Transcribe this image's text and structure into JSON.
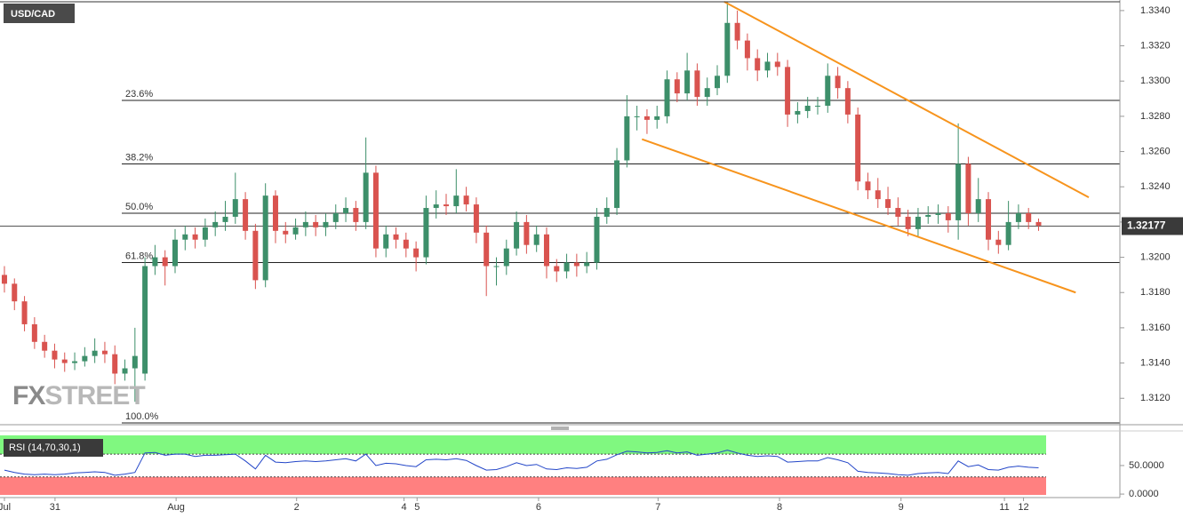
{
  "chart_data": {
    "type": "candlestick",
    "title": "USD/CAD",
    "watermark": [
      "FX",
      "STREET"
    ],
    "up_color": "#3d8f6a",
    "down_color": "#d9534f",
    "xlim": [
      -0.44,
      111.1
    ],
    "xticks": [
      {
        "value": 0,
        "label": "Jul"
      },
      {
        "value": 5.04,
        "label": "31"
      },
      {
        "value": 17.1,
        "label": "Aug"
      },
      {
        "value": 29.1,
        "label": "2"
      },
      {
        "value": 39.8,
        "label": "4"
      },
      {
        "value": 41.1,
        "label": "5"
      },
      {
        "value": 53.2,
        "label": "6"
      },
      {
        "value": 65.1,
        "label": "7"
      },
      {
        "value": 77.2,
        "label": "8"
      },
      {
        "value": 89.3,
        "label": "9"
      },
      {
        "value": 99.6,
        "label": "11"
      },
      {
        "value": 101.5,
        "label": "12"
      }
    ],
    "ylim": [
      1.3105,
      1.3346
    ],
    "yticks": [
      {
        "value": 1.312,
        "label": "1.3120"
      },
      {
        "value": 1.314,
        "label": "1.3140"
      },
      {
        "value": 1.316,
        "label": "1.3160"
      },
      {
        "value": 1.318,
        "label": "1.3180"
      },
      {
        "value": 1.32,
        "label": "1.3200"
      },
      {
        "value": 1.322,
        "label": "1.3220"
      },
      {
        "value": 1.324,
        "label": "1.3240"
      },
      {
        "value": 1.326,
        "label": "1.3260"
      },
      {
        "value": 1.328,
        "label": "1.3280"
      },
      {
        "value": 1.33,
        "label": "1.3300"
      },
      {
        "value": 1.332,
        "label": "1.3320"
      },
      {
        "value": 1.334,
        "label": "1.3340"
      }
    ],
    "current_price": 1.32177,
    "fib_levels": [
      {
        "label": "23.6%",
        "value": 1.3289
      },
      {
        "label": "38.2%",
        "value": 1.3253
      },
      {
        "label": "50.0%",
        "value": 1.3225
      },
      {
        "label": "61.8%",
        "value": 1.3197
      },
      {
        "label": "100.0%",
        "value": 1.3106
      }
    ],
    "trendlines": [
      {
        "color": "#f7941d",
        "x": [
          71.7,
          108
        ],
        "y": [
          1.3345,
          1.3234
        ]
      },
      {
        "color": "#f7941d",
        "x": [
          63.5,
          106.7
        ],
        "y": [
          1.3267,
          1.318
        ]
      }
    ],
    "candles": [
      [
        1.319,
        1.3195,
        1.318,
        1.3185
      ],
      [
        1.3185,
        1.3188,
        1.317,
        1.3175
      ],
      [
        1.3175,
        1.3178,
        1.3158,
        1.3162
      ],
      [
        1.3162,
        1.3166,
        1.3148,
        1.3152
      ],
      [
        1.3152,
        1.3156,
        1.3143,
        1.3147
      ],
      [
        1.3147,
        1.3151,
        1.3137,
        1.3142
      ],
      [
        1.3142,
        1.3146,
        1.3135,
        1.314
      ],
      [
        1.314,
        1.3146,
        1.3136,
        1.3141
      ],
      [
        1.3141,
        1.3149,
        1.3138,
        1.3144
      ],
      [
        1.3144,
        1.3154,
        1.314,
        1.3147
      ],
      [
        1.3147,
        1.3152,
        1.314,
        1.3145
      ],
      [
        1.3145,
        1.315,
        1.3128,
        1.3134
      ],
      [
        1.3134,
        1.3142,
        1.313,
        1.3137
      ],
      [
        1.3137,
        1.316,
        1.3118,
        1.3144
      ],
      [
        1.3134,
        1.32,
        1.313,
        1.3195
      ],
      [
        1.3195,
        1.3207,
        1.319,
        1.32
      ],
      [
        1.32,
        1.3204,
        1.3184,
        1.3195
      ],
      [
        1.3195,
        1.3216,
        1.3191,
        1.321
      ],
      [
        1.321,
        1.3218,
        1.3204,
        1.3213
      ],
      [
        1.3213,
        1.3217,
        1.3205,
        1.321
      ],
      [
        1.321,
        1.3222,
        1.3206,
        1.3217
      ],
      [
        1.3217,
        1.3226,
        1.3212,
        1.322
      ],
      [
        1.322,
        1.3232,
        1.3215,
        1.3223
      ],
      [
        1.3223,
        1.3248,
        1.3219,
        1.3233
      ],
      [
        1.3233,
        1.3237,
        1.321,
        1.3215
      ],
      [
        1.3215,
        1.3219,
        1.3182,
        1.3187
      ],
      [
        1.3187,
        1.3242,
        1.3183,
        1.3235
      ],
      [
        1.3235,
        1.3238,
        1.3208,
        1.3215
      ],
      [
        1.3215,
        1.322,
        1.3208,
        1.3213
      ],
      [
        1.3213,
        1.3222,
        1.321,
        1.3217
      ],
      [
        1.3217,
        1.3226,
        1.3212,
        1.322
      ],
      [
        1.322,
        1.3224,
        1.3212,
        1.3217
      ],
      [
        1.3217,
        1.3225,
        1.3212,
        1.322
      ],
      [
        1.322,
        1.323,
        1.3216,
        1.3225
      ],
      [
        1.3225,
        1.3234,
        1.322,
        1.3228
      ],
      [
        1.3228,
        1.3232,
        1.3215,
        1.322
      ],
      [
        1.322,
        1.3268,
        1.3216,
        1.3248
      ],
      [
        1.3248,
        1.3252,
        1.32,
        1.3205
      ],
      [
        1.3205,
        1.3218,
        1.32,
        1.3213
      ],
      [
        1.3213,
        1.3217,
        1.3205,
        1.321
      ],
      [
        1.321,
        1.3214,
        1.32,
        1.3205
      ],
      [
        1.3205,
        1.3209,
        1.3192,
        1.32
      ],
      [
        1.32,
        1.3235,
        1.3196,
        1.3228
      ],
      [
        1.3228,
        1.3238,
        1.3222,
        1.323
      ],
      [
        1.323,
        1.3236,
        1.3224,
        1.3229
      ],
      [
        1.3229,
        1.325,
        1.3225,
        1.3235
      ],
      [
        1.3235,
        1.324,
        1.3226,
        1.323
      ],
      [
        1.323,
        1.3234,
        1.3208,
        1.3214
      ],
      [
        1.3214,
        1.3218,
        1.3178,
        1.3195
      ],
      [
        1.3195,
        1.32,
        1.3184,
        1.3195
      ],
      [
        1.3195,
        1.321,
        1.319,
        1.3205
      ],
      [
        1.3205,
        1.3226,
        1.3201,
        1.322
      ],
      [
        1.322,
        1.3224,
        1.3202,
        1.3207
      ],
      [
        1.3207,
        1.3218,
        1.3203,
        1.3213
      ],
      [
        1.3213,
        1.3217,
        1.3188,
        1.3195
      ],
      [
        1.3195,
        1.3199,
        1.3186,
        1.3192
      ],
      [
        1.3192,
        1.3202,
        1.3188,
        1.3197
      ],
      [
        1.3197,
        1.3202,
        1.3189,
        1.3195
      ],
      [
        1.3195,
        1.3203,
        1.3191,
        1.3197
      ],
      [
        1.3197,
        1.3228,
        1.3193,
        1.3223
      ],
      [
        1.3223,
        1.3234,
        1.3219,
        1.3228
      ],
      [
        1.3228,
        1.3262,
        1.3224,
        1.3255
      ],
      [
        1.3255,
        1.3292,
        1.3251,
        1.328
      ],
      [
        1.328,
        1.3286,
        1.3272,
        1.328
      ],
      [
        1.328,
        1.3284,
        1.327,
        1.3278
      ],
      [
        1.3278,
        1.3286,
        1.3273,
        1.328
      ],
      [
        1.328,
        1.3306,
        1.3276,
        1.3301
      ],
      [
        1.3301,
        1.3305,
        1.3288,
        1.3293
      ],
      [
        1.3293,
        1.3316,
        1.3289,
        1.3306
      ],
      [
        1.3306,
        1.331,
        1.3286,
        1.3291
      ],
      [
        1.3291,
        1.3302,
        1.3286,
        1.3296
      ],
      [
        1.3296,
        1.3309,
        1.3292,
        1.3303
      ],
      [
        1.3303,
        1.3345,
        1.3299,
        1.3333
      ],
      [
        1.3333,
        1.334,
        1.3318,
        1.3323
      ],
      [
        1.3323,
        1.3327,
        1.3306,
        1.3313
      ],
      [
        1.3313,
        1.3318,
        1.33,
        1.3306
      ],
      [
        1.3306,
        1.3316,
        1.3302,
        1.3311
      ],
      [
        1.3311,
        1.3316,
        1.3303,
        1.3308
      ],
      [
        1.3308,
        1.3312,
        1.3274,
        1.3281
      ],
      [
        1.3281,
        1.3288,
        1.3276,
        1.3283
      ],
      [
        1.3283,
        1.3291,
        1.3279,
        1.3286
      ],
      [
        1.3286,
        1.3291,
        1.3281,
        1.3286
      ],
      [
        1.3286,
        1.331,
        1.3282,
        1.3303
      ],
      [
        1.3303,
        1.3308,
        1.329,
        1.3296
      ],
      [
        1.3296,
        1.33,
        1.3276,
        1.3281
      ],
      [
        1.3281,
        1.3285,
        1.3238,
        1.3243
      ],
      [
        1.3243,
        1.3248,
        1.3233,
        1.3238
      ],
      [
        1.3238,
        1.3245,
        1.3228,
        1.3233
      ],
      [
        1.3233,
        1.324,
        1.3224,
        1.3228
      ],
      [
        1.3228,
        1.3234,
        1.3218,
        1.3223
      ],
      [
        1.3223,
        1.3227,
        1.3212,
        1.3216
      ],
      [
        1.3216,
        1.3228,
        1.3212,
        1.3223
      ],
      [
        1.3223,
        1.3229,
        1.3219,
        1.3224
      ],
      [
        1.3224,
        1.323,
        1.3219,
        1.3225
      ],
      [
        1.3225,
        1.3229,
        1.3214,
        1.3221
      ],
      [
        1.3221,
        1.3276,
        1.321,
        1.3253
      ],
      [
        1.3253,
        1.3257,
        1.3218,
        1.3225
      ],
      [
        1.3225,
        1.3245,
        1.322,
        1.3233
      ],
      [
        1.3233,
        1.3237,
        1.3204,
        1.321
      ],
      [
        1.321,
        1.3215,
        1.3202,
        1.3207
      ],
      [
        1.3207,
        1.3232,
        1.3204,
        1.322
      ],
      [
        1.322,
        1.323,
        1.3216,
        1.3225
      ],
      [
        1.3225,
        1.3228,
        1.3216,
        1.322
      ],
      [
        1.322,
        1.3222,
        1.3215,
        1.3218
      ]
    ],
    "rsi": {
      "label": "RSI (14,70,30,1)",
      "color": "#2346c8",
      "ylim": [
        -3,
        106
      ],
      "yticks": [
        {
          "value": 50,
          "label": "50.0000"
        },
        {
          "value": 0,
          "label": "0.0000"
        }
      ],
      "overbought": 70,
      "oversold": 30,
      "values": [
        42,
        38,
        35,
        34,
        35,
        34,
        35,
        37,
        38,
        39,
        38,
        33,
        35,
        38,
        72,
        73,
        68,
        70,
        70,
        66,
        68,
        68,
        69,
        70,
        58,
        44,
        68,
        56,
        55,
        57,
        58,
        57,
        58,
        60,
        62,
        58,
        70,
        50,
        54,
        53,
        50,
        48,
        60,
        61,
        60,
        62,
        59,
        50,
        42,
        43,
        48,
        55,
        50,
        52,
        44,
        43,
        46,
        45,
        47,
        58,
        61,
        69,
        75,
        74,
        72,
        73,
        76,
        72,
        74,
        68,
        70,
        72,
        77,
        72,
        68,
        66,
        67,
        66,
        56,
        57,
        58,
        58,
        64,
        60,
        55,
        40,
        38,
        37,
        36,
        34,
        33,
        36,
        37,
        38,
        36,
        58,
        48,
        51,
        43,
        42,
        47,
        49,
        47,
        46
      ]
    }
  }
}
